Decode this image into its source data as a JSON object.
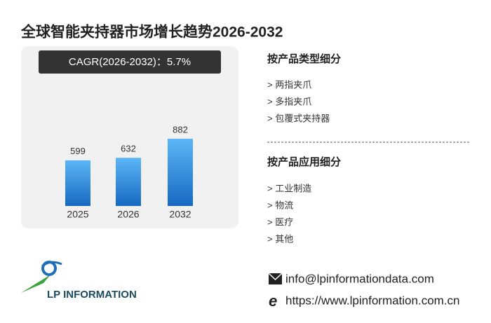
{
  "title": "全球智能夹持器市场增长趋势2026-2032",
  "chart_data": {
    "type": "bar",
    "subtitle": "CAGR(2026-2032)：5.7%",
    "categories": [
      "2025",
      "2026",
      "2032"
    ],
    "values": [
      599,
      632,
      882
    ],
    "color": "#2e8ee0"
  },
  "segments": [
    {
      "heading": "按产品类型细分",
      "items": [
        "> 两指夹爪",
        "> 多指夹爪",
        "> 包覆式夹持器"
      ]
    },
    {
      "heading": "按产品应用细分",
      "items": [
        "> 工业制造",
        "> 物流",
        "> 医疗",
        "> 其他"
      ]
    }
  ],
  "logo_text": "LP INFORMATION",
  "contact": {
    "email": "info@lpinformationdata.com",
    "website": "https://www.lpinformation.com.cn"
  }
}
